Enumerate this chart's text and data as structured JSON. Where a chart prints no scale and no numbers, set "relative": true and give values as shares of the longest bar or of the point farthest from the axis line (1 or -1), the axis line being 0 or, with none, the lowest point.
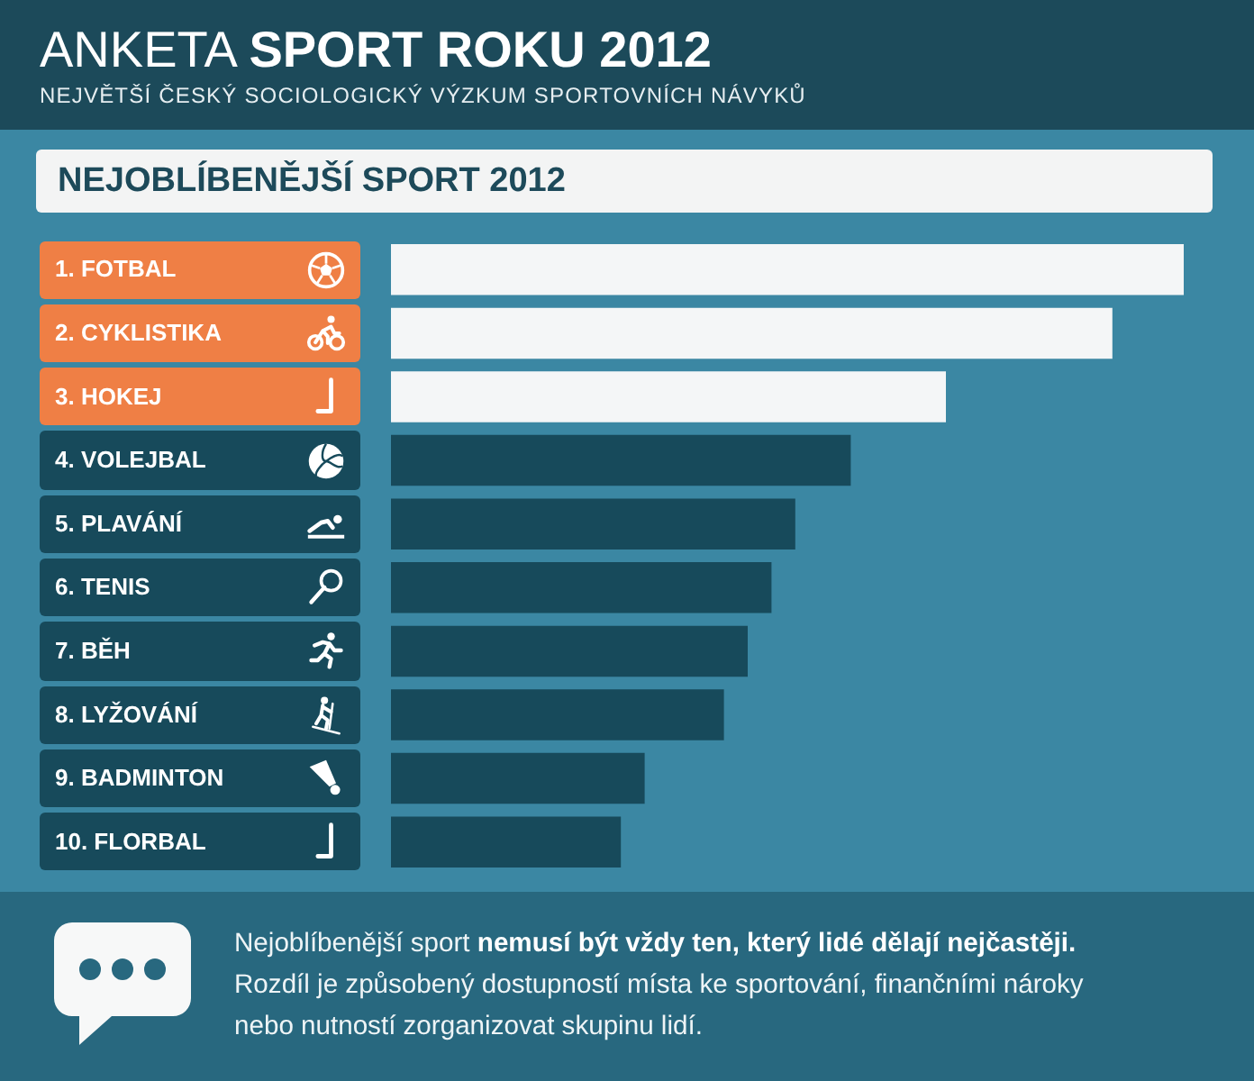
{
  "chart_data": {
    "type": "bar",
    "orientation": "horizontal",
    "relative": true,
    "title": "ANKETA SPORT ROKU 2012",
    "subtitle": "NEJVĚTŠÍ ČESKÝ SOCIOLOGICKÝ VÝZKUM SPORTOVNÍCH NÁVYKŮ",
    "annotations": [
      "NEJOBLÍBENĚJŠÍ SPORT 2012",
      "Nejoblíbenější sport",
      "nemusí být vždy ten, který lidé dělají nejčastěji.",
      "Rozdíl je způsobený dostupností místa ke sportování, finančními nároky nebo nutností zorganizovat skupinu lidí."
    ],
    "categories": [
      "1. FOTBAL",
      "2. CYKLISTIKA",
      "3. HOKEJ",
      "4. VOLEJBAL",
      "5. PLAVÁNÍ",
      "6. TENIS",
      "7. BĚH",
      "8. LYŽOVÁNÍ",
      "9. BADMINTON",
      "10. FLORBAL"
    ],
    "values": [
      1,
      0.91,
      0.7,
      0.58,
      0.51,
      0.48,
      0.45,
      0.42,
      0.32,
      0.29
    ],
    "colors": [
      "#f4f6f7",
      "#f4f6f7",
      "#f4f6f7",
      "#174a5b",
      "#174a5b",
      "#174a5b",
      "#174a5b",
      "#174a5b",
      "#174a5b",
      "#174a5b"
    ]
  }
}
